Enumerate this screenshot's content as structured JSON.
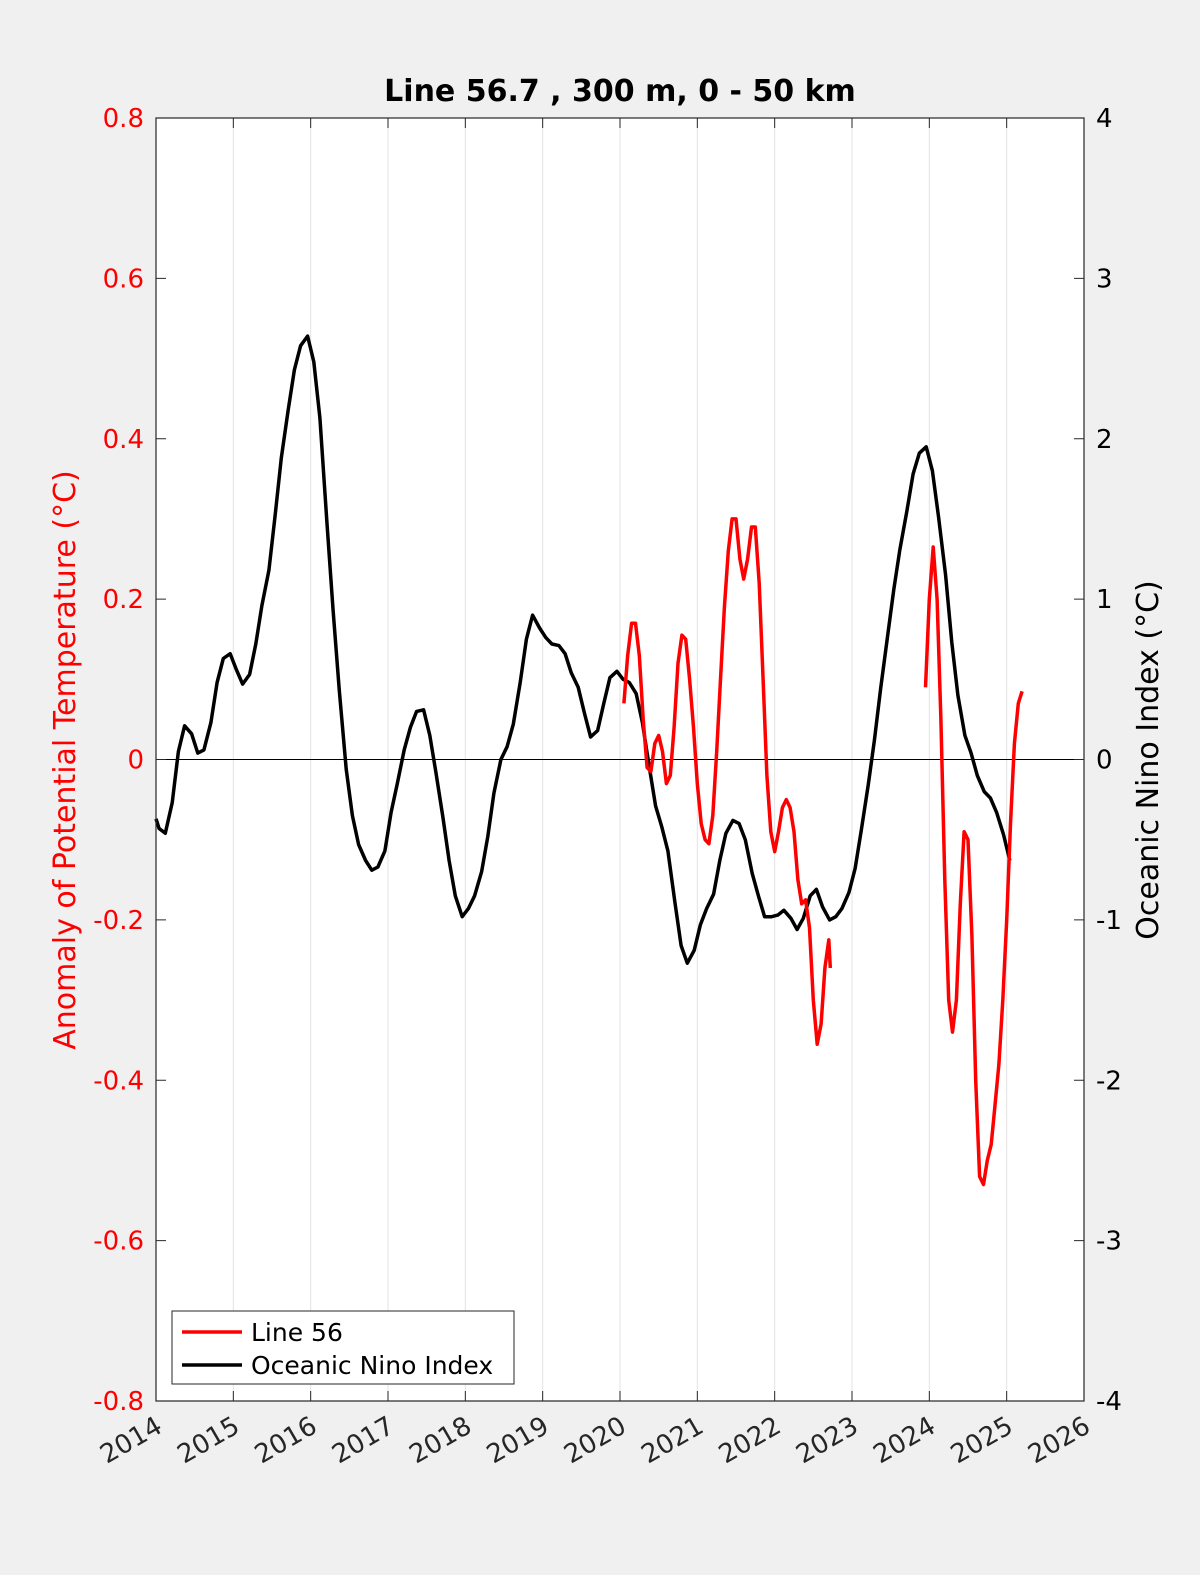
{
  "chart_data": {
    "type": "line",
    "title": "Line 56.7 , 300 m, 0 - 50 km",
    "xlabel": "",
    "ylabel_left": "Anomaly of Potential Temperature (°C)",
    "ylabel_right": "Oceanic Nino Index (°C)",
    "xlim": [
      2014,
      2026
    ],
    "ylim_left": [
      -0.8,
      0.8
    ],
    "ylim_right": [
      -4,
      4
    ],
    "x_ticks": [
      "2014",
      "2015",
      "2016",
      "2017",
      "2018",
      "2019",
      "2020",
      "2021",
      "2022",
      "2023",
      "2024",
      "2025",
      "2026"
    ],
    "y_left_ticks": [
      "0.8",
      "0.6",
      "0.4",
      "0.2",
      "0",
      "-0.2",
      "-0.4",
      "-0.6",
      "-0.8"
    ],
    "y_right_ticks": [
      "4",
      "3",
      "2",
      "1",
      "0",
      "-1",
      "-2",
      "-3",
      "-4"
    ],
    "grid": "vertical",
    "legend_position": "bottom-left",
    "colors": {
      "line56": "#ff0000",
      "oni": "#000000",
      "left_axis": "#ff0000",
      "right_axis": "#000000"
    },
    "series": [
      {
        "name": "Line 56",
        "axis": "left",
        "segments": [
          [
            [
              2020.05,
              0.07
            ],
            [
              2020.1,
              0.13
            ],
            [
              2020.15,
              0.17
            ],
            [
              2020.2,
              0.17
            ],
            [
              2020.25,
              0.13
            ],
            [
              2020.3,
              0.05
            ],
            [
              2020.35,
              -0.01
            ],
            [
              2020.4,
              -0.015
            ],
            [
              2020.45,
              0.02
            ],
            [
              2020.5,
              0.03
            ],
            [
              2020.55,
              0.01
            ],
            [
              2020.6,
              -0.03
            ],
            [
              2020.65,
              -0.02
            ],
            [
              2020.7,
              0.04
            ],
            [
              2020.75,
              0.12
            ],
            [
              2020.8,
              0.155
            ],
            [
              2020.85,
              0.15
            ],
            [
              2020.9,
              0.1
            ],
            [
              2020.95,
              0.04
            ],
            [
              2021.0,
              -0.03
            ],
            [
              2021.05,
              -0.08
            ],
            [
              2021.1,
              -0.1
            ],
            [
              2021.15,
              -0.105
            ],
            [
              2021.2,
              -0.07
            ],
            [
              2021.25,
              0.01
            ],
            [
              2021.3,
              0.1
            ],
            [
              2021.35,
              0.19
            ],
            [
              2021.4,
              0.26
            ],
            [
              2021.45,
              0.3
            ],
            [
              2021.5,
              0.3
            ],
            [
              2021.55,
              0.25
            ],
            [
              2021.6,
              0.225
            ],
            [
              2021.65,
              0.25
            ],
            [
              2021.7,
              0.29
            ],
            [
              2021.75,
              0.29
            ],
            [
              2021.8,
              0.22
            ],
            [
              2021.85,
              0.1
            ],
            [
              2021.9,
              -0.02
            ],
            [
              2021.95,
              -0.09
            ],
            [
              2022.0,
              -0.115
            ],
            [
              2022.05,
              -0.09
            ],
            [
              2022.1,
              -0.06
            ],
            [
              2022.15,
              -0.05
            ],
            [
              2022.2,
              -0.06
            ],
            [
              2022.25,
              -0.09
            ],
            [
              2022.3,
              -0.15
            ],
            [
              2022.35,
              -0.18
            ],
            [
              2022.4,
              -0.175
            ],
            [
              2022.45,
              -0.21
            ],
            [
              2022.5,
              -0.3
            ],
            [
              2022.55,
              -0.355
            ],
            [
              2022.6,
              -0.33
            ],
            [
              2022.65,
              -0.26
            ],
            [
              2022.7,
              -0.225
            ],
            [
              2022.72,
              -0.26
            ]
          ],
          [
            [
              2023.95,
              0.09
            ],
            [
              2024.0,
              0.2
            ],
            [
              2024.05,
              0.265
            ],
            [
              2024.1,
              0.2
            ],
            [
              2024.15,
              0.05
            ],
            [
              2024.2,
              -0.15
            ],
            [
              2024.25,
              -0.3
            ],
            [
              2024.3,
              -0.34
            ],
            [
              2024.35,
              -0.3
            ],
            [
              2024.4,
              -0.18
            ],
            [
              2024.45,
              -0.09
            ],
            [
              2024.5,
              -0.1
            ],
            [
              2024.55,
              -0.22
            ],
            [
              2024.6,
              -0.4
            ],
            [
              2024.65,
              -0.52
            ],
            [
              2024.7,
              -0.53
            ],
            [
              2024.75,
              -0.5
            ],
            [
              2024.8,
              -0.48
            ],
            [
              2024.85,
              -0.43
            ],
            [
              2024.9,
              -0.38
            ],
            [
              2024.95,
              -0.3
            ],
            [
              2025.0,
              -0.2
            ],
            [
              2025.05,
              -0.08
            ],
            [
              2025.1,
              0.02
            ],
            [
              2025.15,
              0.07
            ],
            [
              2025.2,
              0.085
            ]
          ]
        ]
      },
      {
        "name": "Oceanic Nino Index",
        "axis": "right",
        "points": [
          [
            2014.0,
            -0.37
          ],
          [
            2014.04,
            -0.43
          ],
          [
            2014.12,
            -0.46
          ],
          [
            2014.21,
            -0.27
          ],
          [
            2014.29,
            0.05
          ],
          [
            2014.37,
            0.21
          ],
          [
            2014.46,
            0.16
          ],
          [
            2014.54,
            0.04
          ],
          [
            2014.62,
            0.06
          ],
          [
            2014.71,
            0.23
          ],
          [
            2014.79,
            0.48
          ],
          [
            2014.87,
            0.63
          ],
          [
            2014.96,
            0.66
          ],
          [
            2015.04,
            0.56
          ],
          [
            2015.12,
            0.47
          ],
          [
            2015.21,
            0.53
          ],
          [
            2015.29,
            0.72
          ],
          [
            2015.37,
            0.96
          ],
          [
            2015.46,
            1.18
          ],
          [
            2015.54,
            1.52
          ],
          [
            2015.62,
            1.88
          ],
          [
            2015.71,
            2.18
          ],
          [
            2015.79,
            2.43
          ],
          [
            2015.87,
            2.58
          ],
          [
            2015.96,
            2.64
          ],
          [
            2016.04,
            2.48
          ],
          [
            2016.12,
            2.13
          ],
          [
            2016.21,
            1.48
          ],
          [
            2016.29,
            0.93
          ],
          [
            2016.37,
            0.43
          ],
          [
            2016.46,
            -0.06
          ],
          [
            2016.54,
            -0.35
          ],
          [
            2016.62,
            -0.53
          ],
          [
            2016.71,
            -0.63
          ],
          [
            2016.79,
            -0.69
          ],
          [
            2016.87,
            -0.67
          ],
          [
            2016.96,
            -0.57
          ],
          [
            2017.04,
            -0.33
          ],
          [
            2017.12,
            -0.15
          ],
          [
            2017.21,
            0.06
          ],
          [
            2017.29,
            0.2
          ],
          [
            2017.37,
            0.3
          ],
          [
            2017.46,
            0.31
          ],
          [
            2017.54,
            0.15
          ],
          [
            2017.62,
            -0.08
          ],
          [
            2017.71,
            -0.36
          ],
          [
            2017.79,
            -0.63
          ],
          [
            2017.87,
            -0.85
          ],
          [
            2017.96,
            -0.98
          ],
          [
            2018.04,
            -0.93
          ],
          [
            2018.12,
            -0.85
          ],
          [
            2018.21,
            -0.7
          ],
          [
            2018.29,
            -0.48
          ],
          [
            2018.37,
            -0.21
          ],
          [
            2018.46,
            0.0
          ],
          [
            2018.54,
            0.08
          ],
          [
            2018.62,
            0.22
          ],
          [
            2018.71,
            0.48
          ],
          [
            2018.79,
            0.75
          ],
          [
            2018.87,
            0.9
          ],
          [
            2018.96,
            0.82
          ],
          [
            2019.04,
            0.76
          ],
          [
            2019.12,
            0.72
          ],
          [
            2019.21,
            0.71
          ],
          [
            2019.29,
            0.66
          ],
          [
            2019.37,
            0.54
          ],
          [
            2019.46,
            0.45
          ],
          [
            2019.54,
            0.29
          ],
          [
            2019.62,
            0.14
          ],
          [
            2019.71,
            0.18
          ],
          [
            2019.79,
            0.35
          ],
          [
            2019.87,
            0.51
          ],
          [
            2019.96,
            0.55
          ],
          [
            2020.04,
            0.5
          ],
          [
            2020.12,
            0.48
          ],
          [
            2020.21,
            0.41
          ],
          [
            2020.29,
            0.23
          ],
          [
            2020.37,
            -0.02
          ],
          [
            2020.46,
            -0.29
          ],
          [
            2020.54,
            -0.42
          ],
          [
            2020.62,
            -0.57
          ],
          [
            2020.71,
            -0.89
          ],
          [
            2020.79,
            -1.16
          ],
          [
            2020.87,
            -1.27
          ],
          [
            2020.96,
            -1.19
          ],
          [
            2021.04,
            -1.03
          ],
          [
            2021.12,
            -0.93
          ],
          [
            2021.21,
            -0.84
          ],
          [
            2021.29,
            -0.63
          ],
          [
            2021.37,
            -0.46
          ],
          [
            2021.46,
            -0.38
          ],
          [
            2021.54,
            -0.4
          ],
          [
            2021.62,
            -0.5
          ],
          [
            2021.71,
            -0.71
          ],
          [
            2021.79,
            -0.85
          ],
          [
            2021.87,
            -0.98
          ],
          [
            2021.96,
            -0.98
          ],
          [
            2022.04,
            -0.97
          ],
          [
            2022.12,
            -0.94
          ],
          [
            2022.21,
            -0.99
          ],
          [
            2022.29,
            -1.06
          ],
          [
            2022.37,
            -0.99
          ],
          [
            2022.46,
            -0.85
          ],
          [
            2022.54,
            -0.81
          ],
          [
            2022.62,
            -0.92
          ],
          [
            2022.71,
            -1.0
          ],
          [
            2022.79,
            -0.98
          ],
          [
            2022.87,
            -0.93
          ],
          [
            2022.96,
            -0.83
          ],
          [
            2023.04,
            -0.68
          ],
          [
            2023.12,
            -0.44
          ],
          [
            2023.21,
            -0.16
          ],
          [
            2023.29,
            0.12
          ],
          [
            2023.37,
            0.44
          ],
          [
            2023.46,
            0.77
          ],
          [
            2023.54,
            1.06
          ],
          [
            2023.62,
            1.31
          ],
          [
            2023.71,
            1.55
          ],
          [
            2023.79,
            1.78
          ],
          [
            2023.87,
            1.91
          ],
          [
            2023.96,
            1.95
          ],
          [
            2024.04,
            1.8
          ],
          [
            2024.12,
            1.51
          ],
          [
            2024.21,
            1.15
          ],
          [
            2024.29,
            0.73
          ],
          [
            2024.37,
            0.4
          ],
          [
            2024.46,
            0.15
          ],
          [
            2024.54,
            0.04
          ],
          [
            2024.62,
            -0.1
          ],
          [
            2024.71,
            -0.2
          ],
          [
            2024.79,
            -0.24
          ],
          [
            2024.87,
            -0.33
          ],
          [
            2024.96,
            -0.47
          ],
          [
            2025.04,
            -0.63
          ]
        ]
      }
    ]
  }
}
